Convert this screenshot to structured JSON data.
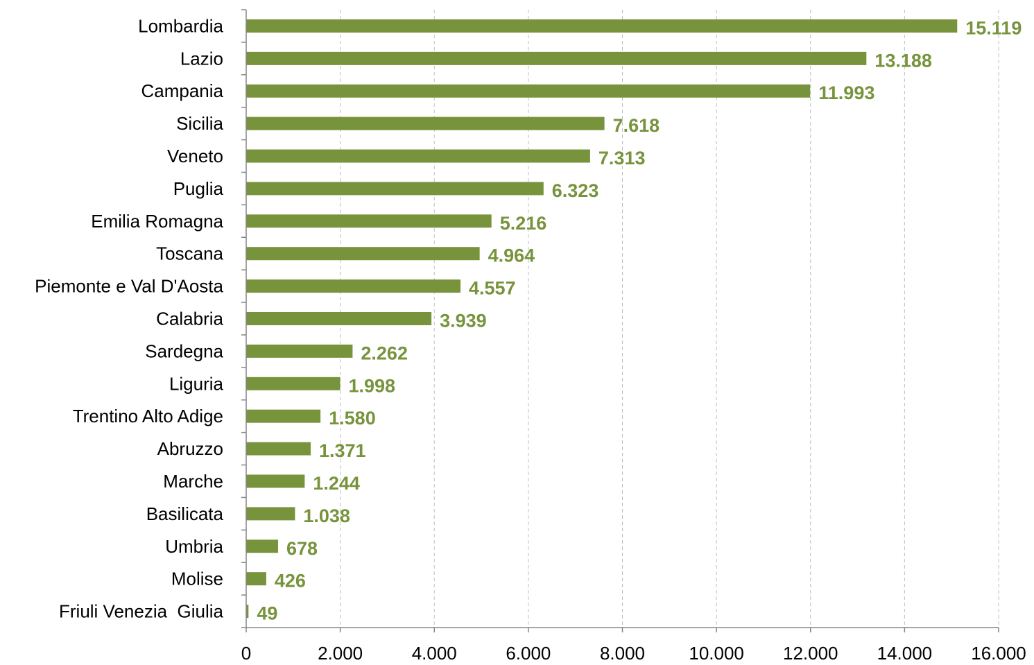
{
  "chart_data": {
    "type": "bar",
    "orientation": "horizontal",
    "title": "",
    "xlabel": "",
    "ylabel": "",
    "categories": [
      "Lombardia",
      "Lazio",
      "Campania",
      "Sicilia",
      "Veneto",
      "Puglia",
      "Emilia Romagna",
      "Toscana",
      "Piemonte e Val D'Aosta",
      "Calabria",
      "Sardegna",
      "Liguria",
      "Trentino Alto Adige",
      "Abruzzo",
      "Marche",
      "Basilicata",
      "Umbria",
      "Molise",
      "Friuli Venezia  Giulia"
    ],
    "values": [
      15119,
      13188,
      11993,
      7618,
      7313,
      6323,
      5216,
      4964,
      4557,
      3939,
      2262,
      1998,
      1580,
      1371,
      1244,
      1038,
      678,
      426,
      49
    ],
    "value_labels": [
      "15.119",
      "13.188",
      "11.993",
      "7.618",
      "7.313",
      "6.323",
      "5.216",
      "4.964",
      "4.557",
      "3.939",
      "2.262",
      "1.998",
      "1.580",
      "1.371",
      "1.244",
      "1.038",
      "678",
      "426",
      "49"
    ],
    "xlim": [
      0,
      16000
    ],
    "xticks": [
      0,
      2000,
      4000,
      6000,
      8000,
      10000,
      12000,
      14000,
      16000
    ],
    "xtick_labels": [
      "0",
      "2.000",
      "4.000",
      "6.000",
      "8.000",
      "10.000",
      "12.000",
      "14.000",
      "16.000"
    ],
    "grid": "vertical dashed",
    "legend": "none",
    "colors": {
      "bar": "#77933c",
      "data_label": "#77933c",
      "grid": "#bfbfbf",
      "axis": "#868686"
    }
  }
}
